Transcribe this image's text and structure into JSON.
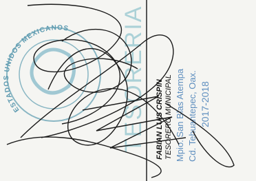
{
  "stamp": {
    "title": "TESORERIA",
    "seal_text": "ESTADOS UNIDOS MEXICANOS"
  },
  "signature_block": {
    "name": "FABIAN LUIS CRISPIN",
    "position": "TESORERO MUNICIPAL",
    "municipality": "Mpio. San Blas Atempa",
    "city": "Cd. Tehuantepec, Oax.",
    "period": "2017-2018"
  }
}
